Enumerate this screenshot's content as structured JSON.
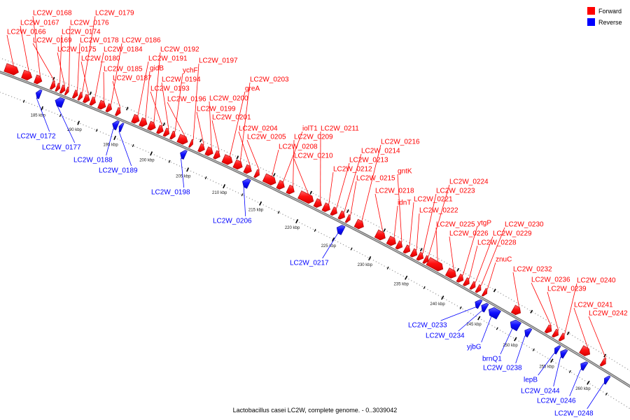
{
  "title": "Lactobacillus casei LC2W, complete genome. - 0..3039042",
  "legend": {
    "items": [
      {
        "label": "Forward",
        "color": "#ff0000"
      },
      {
        "label": "Reverse",
        "color": "#0000ff"
      }
    ]
  },
  "colors": {
    "forward": "#ff0000",
    "reverse": "#0000ff",
    "backbone": "#707070"
  },
  "ruler": {
    "ticks": [
      "185 kbp",
      "190 kbp",
      "195 kbp",
      "200 kbp",
      "205 kbp",
      "210 kbp",
      "215 kbp",
      "220 kbp",
      "225 kbp",
      "230 kbp",
      "235 kbp",
      "240 kbp",
      "245 kbp",
      "250 kbp",
      "255 kbp",
      "260 kbp"
    ]
  },
  "forward_genes": [
    "LC2W_0166",
    "LC2W_0167",
    "LC2W_0168",
    "LC2W_0169",
    "LC2W_0174",
    "LC2W_0175",
    "LC2W_0176",
    "LC2W_0178",
    "LC2W_0179",
    "LC2W_0180",
    "LC2W_0184",
    "LC2W_0185",
    "LC2W_0186",
    "LC2W_0187",
    "LC2W_0191",
    "gidB",
    "LC2W_0192",
    "LC2W_0193",
    "LC2W_0194",
    "ychF",
    "LC2W_0196",
    "LC2W_0197",
    "LC2W_0199",
    "LC2W_0200",
    "LC2W_0201",
    "greA",
    "LC2W_0203",
    "LC2W_0204",
    "LC2W_0205",
    "LC2W_0208",
    "iolT1",
    "LC2W_0209",
    "LC2W_0210",
    "LC2W_0211",
    "LC2W_0212",
    "LC2W_0213",
    "LC2W_0214",
    "LC2W_0215",
    "LC2W_0216",
    "LC2W_0218",
    "idnT",
    "gntK",
    "LC2W_0221",
    "LC2W_0222",
    "LC2W_0223",
    "LC2W_0224",
    "LC2W_0225",
    "LC2W_0226",
    "ytgP",
    "LC2W_0228",
    "LC2W_0229",
    "LC2W_0230",
    "znuC",
    "LC2W_0232",
    "LC2W_0236",
    "LC2W_0239",
    "LC2W_0240",
    "LC2W_0241",
    "LC2W_0242"
  ],
  "reverse_genes": [
    "LC2W_0172",
    "LC2W_0177",
    "LC2W_0188",
    "LC2W_0189",
    "LC2W_0198",
    "LC2W_0206",
    "LC2W_0217",
    "LC2W_0233",
    "LC2W_0234",
    "yjbG",
    "brnQ1",
    "LC2W_0238",
    "lepB",
    "LC2W_0244",
    "LC2W_0246",
    "LC2W_0248"
  ]
}
